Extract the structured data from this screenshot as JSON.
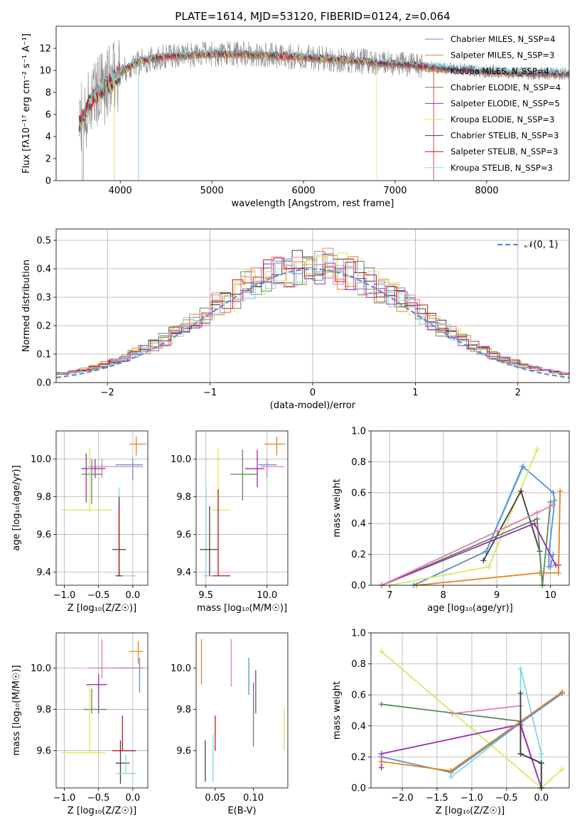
{
  "colors": {
    "Chabrier MILES": "#5b8fd6",
    "Salpeter MILES": "#e9803a",
    "Kroupa MILES": "#e8801a",
    "Chabrier ELODIE": "#5a8a5a",
    "Salpeter ELODIE": "#9d2bb5",
    "Kroupa ELODIE": "#d8e85a",
    "Chabrier STELIB": "#3f3f3f",
    "Salpeter STELIB": "#c4141c",
    "Kroupa STELIB": "#7fd8e0",
    "pink": "#e27fae",
    "data": "#808080",
    "normal": "#5b8fd6"
  },
  "chart_data": [
    {
      "id": "spectrum",
      "type": "line",
      "title": "PLATE=1614, MJD=53120, FIBERID=0124, z=0.064",
      "xlabel": "wavelength [Angstrom, rest frame]",
      "ylabel": "Flux [fλ10⁻¹⁷ erg cm⁻² s⁻¹ A⁻¹]",
      "xlim": [
        3300,
        8900
      ],
      "ylim": [
        0,
        14
      ],
      "xticks": [
        "4000",
        "5000",
        "6000",
        "7000",
        "8000"
      ],
      "yticks": [
        "0",
        "2",
        "4",
        "6",
        "8",
        "10",
        "12"
      ],
      "legend_position": "top-right",
      "legend": [
        "Chabrier MILES, N_SSP=4",
        "Salpeter MILES, N_SSP=3",
        "Kroupa MILES, N_SSP=4",
        "Chabrier ELODIE, N_SSP=4",
        "Salpeter ELODIE, N_SSP=5",
        "Kroupa ELODIE, N_SSP=3",
        "Chabrier STELIB, N_SSP=3",
        "Salpeter STELIB, N_SSP=3",
        "Kroupa STELIB, N_SSP=3"
      ],
      "continuum_points": {
        "x": [
          3550,
          3700,
          3850,
          4000,
          4200,
          4500,
          5000,
          5500,
          6000,
          6500,
          7000,
          7500,
          8000,
          8500
        ],
        "y": [
          5.0,
          7.5,
          8.6,
          9.8,
          10.8,
          11.3,
          11.5,
          11.4,
          11.2,
          10.9,
          10.6,
          10.2,
          9.9,
          9.7
        ]
      },
      "model_cutoffs": {
        "Kroupa ELODIE": 6800,
        "Salpeter STELIB": 7420
      }
    },
    {
      "id": "residuals",
      "type": "step-histogram",
      "xlabel": "(data-model)/error",
      "ylabel": "Normed distribution",
      "xlim": [
        -2.5,
        2.5
      ],
      "ylim": [
        0,
        0.54
      ],
      "xticks": [
        "−2",
        "−1",
        "0",
        "1",
        "2"
      ],
      "yticks": [
        "0.0",
        "0.1",
        "0.2",
        "0.3",
        "0.4",
        "0.5"
      ],
      "bin_width": 0.1,
      "legend": [
        "𝒩(0, 1)"
      ],
      "legend_position": "top-right",
      "grid": true
    },
    {
      "id": "age-Z",
      "type": "errorbar",
      "xlabel": "Z [log₁₀(Z/Z☉)]",
      "ylabel": "age  [log₁₀(age/yr)]",
      "xlim": [
        -1.12,
        0.22
      ],
      "ylim": [
        9.33,
        10.15
      ],
      "xticks": [
        "−1.0",
        "−0.5",
        "0.0"
      ],
      "yticks": [
        "9.4",
        "9.6",
        "9.8",
        "10.0"
      ],
      "grid": true,
      "points": [
        {
          "c": "Chabrier MILES",
          "x": 0.0,
          "y": 9.97,
          "xl": -0.25,
          "xh": 0.15,
          "yl": 9.89,
          "yh": 10.0
        },
        {
          "c": "Kroupa MILES",
          "x": 0.05,
          "y": 10.08,
          "xl": -0.05,
          "xh": 0.2,
          "yl": 10.02,
          "yh": 10.12
        },
        {
          "c": "pink",
          "x": -0.45,
          "y": 9.96,
          "xl": -0.65,
          "xh": 0.15,
          "yl": 9.9,
          "yh": 10.0
        },
        {
          "c": "Salpeter ELODIE",
          "x": -0.55,
          "y": 9.95,
          "xl": -0.75,
          "xh": -0.4,
          "yl": 9.9,
          "yh": 10.0
        },
        {
          "c": "Salpeter ELODIE",
          "x": -0.68,
          "y": 9.9,
          "xl": -0.68,
          "xh": -0.68,
          "yl": 9.77,
          "yh": 10.03
        },
        {
          "c": "Chabrier ELODIE",
          "x": -0.6,
          "y": 9.92,
          "xl": -0.75,
          "xh": -0.45,
          "yl": 9.76,
          "yh": 10.0
        },
        {
          "c": "Kroupa ELODIE",
          "x": -0.63,
          "y": 9.73,
          "xl": -1.05,
          "xh": -0.3,
          "yl": 9.72,
          "yh": 10.06
        },
        {
          "c": "Kroupa STELIB",
          "x": -0.2,
          "y": 9.38,
          "xl": -0.25,
          "xh": 0.05,
          "yl": 9.38,
          "yh": 9.85
        },
        {
          "c": "Chabrier STELIB",
          "x": -0.2,
          "y": 9.52,
          "xl": -0.3,
          "xh": -0.1,
          "yl": 9.38,
          "yh": 9.8
        },
        {
          "c": "Salpeter STELIB",
          "x": -0.2,
          "y": 9.38,
          "xl": -0.25,
          "xh": -0.15,
          "yl": 9.38,
          "yh": 9.75
        }
      ]
    },
    {
      "id": "age-mass",
      "type": "errorbar",
      "xlabel": "mass [log₁₀(M/M☉)]",
      "ylabel": "",
      "xlim": [
        9.42,
        10.17
      ],
      "ylim": [
        9.33,
        10.15
      ],
      "xticks": [
        "9.5",
        "10.0"
      ],
      "yticks": [
        "9.4",
        "9.6",
        "9.8",
        "10.0"
      ],
      "grid": true,
      "points": [
        {
          "c": "Kroupa MILES",
          "x": 10.08,
          "y": 10.08,
          "xl": 9.98,
          "xh": 10.15,
          "yl": 10.02,
          "yh": 10.12
        },
        {
          "c": "Chabrier MILES",
          "x": 10.0,
          "y": 9.97,
          "xl": 9.93,
          "xh": 10.08,
          "yl": 9.9,
          "yh": 10.0
        },
        {
          "c": "pink",
          "x": 10.0,
          "y": 9.96,
          "xl": 9.95,
          "xh": 10.14,
          "yl": 9.9,
          "yh": 10.0
        },
        {
          "c": "Salpeter ELODIE",
          "x": 9.92,
          "y": 9.95,
          "xl": 9.82,
          "xh": 9.98,
          "yl": 9.85,
          "yh": 10.05
        },
        {
          "c": "Chabrier ELODIE",
          "x": 9.8,
          "y": 9.92,
          "xl": 9.7,
          "xh": 9.92,
          "yl": 9.78,
          "yh": 10.05
        },
        {
          "c": "Kroupa ELODIE",
          "x": 9.6,
          "y": 9.73,
          "xl": 9.55,
          "xh": 9.7,
          "yl": 9.6,
          "yh": 10.06
        },
        {
          "c": "Kroupa STELIB",
          "x": 9.5,
          "y": 9.38,
          "xl": 9.48,
          "xh": 9.55,
          "yl": 9.38,
          "yh": 9.85
        },
        {
          "c": "Chabrier STELIB",
          "x": 9.53,
          "y": 9.52,
          "xl": 9.45,
          "xh": 9.6,
          "yl": 9.38,
          "yh": 9.75
        },
        {
          "c": "Salpeter STELIB",
          "x": 9.6,
          "y": 9.38,
          "xl": 9.55,
          "xh": 9.7,
          "yl": 9.38,
          "yh": 9.84
        }
      ]
    },
    {
      "id": "weight-age",
      "type": "line",
      "xlabel": "age  [log₁₀(age/yr)]",
      "ylabel": "mass weight",
      "xlim": [
        6.65,
        10.35
      ],
      "ylim": [
        0,
        1.0
      ],
      "xticks": [
        "7",
        "8",
        "9",
        "10"
      ],
      "yticks": [
        "0.0",
        "0.2",
        "0.4",
        "0.6",
        "0.8",
        "1.0"
      ],
      "grid": true,
      "series": [
        {
          "c": "Kroupa STELIB",
          "x": [
            7.45,
            8.8,
            9.5
          ],
          "y": [
            0.0,
            0.22,
            0.77
          ]
        },
        {
          "c": "Chabrier MILES",
          "x": [
            7.45,
            8.8,
            9.48,
            10.05,
            10.08,
            9.97,
            9.97
          ],
          "y": [
            0.0,
            0.22,
            0.77,
            0.6,
            0.55,
            0.2,
            0.12
          ]
        },
        {
          "c": "Kroupa ELODIE",
          "x": [
            7.0,
            8.85,
            9.75
          ],
          "y": [
            0.0,
            0.12,
            0.88
          ]
        },
        {
          "c": "Chabrier STELIB",
          "x": [
            8.75,
            9.45,
            9.8,
            9.85
          ],
          "y": [
            0.16,
            0.61,
            0.22,
            0.0
          ]
        },
        {
          "c": "Chabrier ELODIE",
          "x": [
            6.85,
            9.75,
            9.85,
            10.0
          ],
          "y": [
            0.0,
            0.43,
            0.0,
            0.54
          ]
        },
        {
          "c": "Salpeter ELODIE",
          "x": [
            6.85,
            9.7,
            10.1,
            10.15
          ],
          "y": [
            0.0,
            0.4,
            0.13,
            0.13
          ]
        },
        {
          "c": "pink",
          "x": [
            6.85,
            9.75,
            10.05
          ],
          "y": [
            0.0,
            0.47,
            0.52
          ]
        },
        {
          "c": "Kroupa MILES",
          "x": [
            7.5,
            9.8,
            10.15,
            10.18
          ],
          "y": [
            0.0,
            0.08,
            0.08,
            0.61
          ]
        },
        {
          "c": "Chabrier MILES",
          "x": [
            10.0,
            10.05
          ],
          "y": [
            0.12,
            0.2
          ]
        }
      ]
    },
    {
      "id": "mass-Z",
      "type": "errorbar",
      "xlabel": "Z [log₁₀(Z/Z☉)]",
      "ylabel": "mass [log₁₀(M/M☉)]",
      "xlim": [
        -1.12,
        0.22
      ],
      "ylim": [
        9.42,
        10.17
      ],
      "xticks": [
        "−1.0",
        "−0.5",
        "0.0"
      ],
      "yticks": [
        "9.6",
        "9.8",
        "10.0"
      ],
      "grid": true,
      "points": [
        {
          "c": "Kroupa MILES",
          "x": 0.08,
          "y": 10.08,
          "xl": -0.05,
          "xh": 0.15,
          "yl": 10.02,
          "yh": 10.13
        },
        {
          "c": "Chabrier MILES",
          "x": 0.1,
          "y": 10.0,
          "xl": -0.22,
          "xh": 0.15,
          "yl": 9.88,
          "yh": 10.05
        },
        {
          "c": "pink",
          "x": -0.45,
          "y": 10.0,
          "xl": -0.65,
          "xh": 0.15,
          "yl": 9.95,
          "yh": 10.14
        },
        {
          "c": "Salpeter ELODIE",
          "x": -0.5,
          "y": 9.92,
          "xl": -0.68,
          "xh": -0.38,
          "yl": 9.78,
          "yh": 9.97
        },
        {
          "c": "Chabrier ELODIE",
          "x": -0.6,
          "y": 9.8,
          "xl": -0.72,
          "xh": -0.38,
          "yl": 9.78,
          "yh": 9.9
        },
        {
          "c": "Kroupa ELODIE",
          "x": -0.63,
          "y": 9.59,
          "xl": -1.05,
          "xh": -0.4,
          "yl": 9.59,
          "yh": 9.92
        },
        {
          "c": "Salpeter STELIB",
          "x": -0.15,
          "y": 9.6,
          "xl": -0.3,
          "xh": 0.05,
          "yl": 9.6,
          "yh": 9.77
        },
        {
          "c": "Chabrier STELIB",
          "x": -0.18,
          "y": 9.54,
          "xl": -0.25,
          "xh": -0.05,
          "yl": 9.44,
          "yh": 9.65
        },
        {
          "c": "Kroupa STELIB",
          "x": -0.1,
          "y": 9.49,
          "xl": -0.25,
          "xh": 0.05,
          "yl": 9.49,
          "yh": 9.58
        }
      ]
    },
    {
      "id": "mass-EBV",
      "type": "errorbar",
      "xlabel": "E(B-V)",
      "ylabel": "",
      "xlim": [
        0.025,
        0.145
      ],
      "ylim": [
        9.42,
        10.17
      ],
      "xticks": [
        "0.05",
        "0.10"
      ],
      "yticks": [
        "9.6",
        "9.8",
        "10.0"
      ],
      "grid": false,
      "points": [
        {
          "c": "Kroupa MILES",
          "x": 0.032,
          "y": 10.03,
          "yl": 9.92,
          "yh": 10.14
        },
        {
          "c": "pink",
          "x": 0.071,
          "y": 10.02,
          "yl": 9.91,
          "yh": 10.14
        },
        {
          "c": "Chabrier MILES",
          "x": 0.094,
          "y": 9.97,
          "yl": 9.87,
          "yh": 10.05
        },
        {
          "c": "Salpeter ELODIE",
          "x": 0.103,
          "y": 9.88,
          "yl": 9.78,
          "yh": 9.99
        },
        {
          "c": "Chabrier ELODIE",
          "x": 0.1,
          "y": 9.78,
          "yl": 9.62,
          "yh": 9.93
        },
        {
          "c": "Kroupa ELODIE",
          "x": 0.14,
          "y": 9.7,
          "yl": 9.6,
          "yh": 9.81
        },
        {
          "c": "Salpeter STELIB",
          "x": 0.05,
          "y": 9.68,
          "yl": 9.6,
          "yh": 9.77
        },
        {
          "c": "Kroupa STELIB",
          "x": 0.047,
          "y": 9.54,
          "yl": 9.45,
          "yh": 9.68
        },
        {
          "c": "Chabrier STELIB",
          "x": 0.037,
          "y": 9.55,
          "yl": 9.45,
          "yh": 9.65
        }
      ]
    },
    {
      "id": "weight-Z",
      "type": "line",
      "xlabel": "Z [log₁₀(Z/Z☉)]",
      "ylabel": "mass weight",
      "xlim": [
        -2.45,
        0.4
      ],
      "ylim": [
        0,
        1.0
      ],
      "xticks": [
        "−2.0",
        "−1.5",
        "−1.0",
        "−0.5",
        "0.0"
      ],
      "yticks": [
        "0.0",
        "0.2",
        "0.4",
        "0.6",
        "0.8",
        "1.0"
      ],
      "grid": true,
      "series": [
        {
          "c": "Kroupa ELODIE",
          "x": [
            -2.3,
            0.0,
            0.3
          ],
          "y": [
            0.88,
            0.0,
            0.12
          ]
        },
        {
          "c": "Chabrier ELODIE",
          "x": [
            -2.3,
            -0.3,
            -0.3,
            0.0,
            0.0
          ],
          "y": [
            0.54,
            0.43,
            0.22,
            0.16,
            0.0
          ]
        },
        {
          "c": "pink",
          "x": [
            -1.28,
            -0.3,
            -0.3,
            0.0
          ],
          "y": [
            0.48,
            0.53,
            0.4,
            0.0
          ]
        },
        {
          "c": "Salpeter ELODIE",
          "x": [
            -2.3,
            -2.3,
            -0.3,
            0.0
          ],
          "y": [
            0.13,
            0.22,
            0.41,
            0.0
          ]
        },
        {
          "c": "Kroupa STELIB",
          "x": [
            -1.3,
            -0.3,
            -0.3,
            0.0,
            0.0
          ],
          "y": [
            0.07,
            0.42,
            0.77,
            0.22,
            0.0
          ]
        },
        {
          "c": "Chabrier MILES",
          "x": [
            -2.3,
            -1.3,
            0.3
          ],
          "y": [
            0.2,
            0.1,
            0.61
          ]
        },
        {
          "c": "Kroupa MILES",
          "x": [
            -2.3,
            -1.3,
            0.3
          ],
          "y": [
            0.17,
            0.11,
            0.62
          ]
        },
        {
          "c": "Chabrier STELIB",
          "x": [
            -0.3,
            -0.3,
            0.0,
            0.0
          ],
          "y": [
            0.61,
            0.22,
            0.16,
            0.0
          ]
        }
      ]
    }
  ]
}
